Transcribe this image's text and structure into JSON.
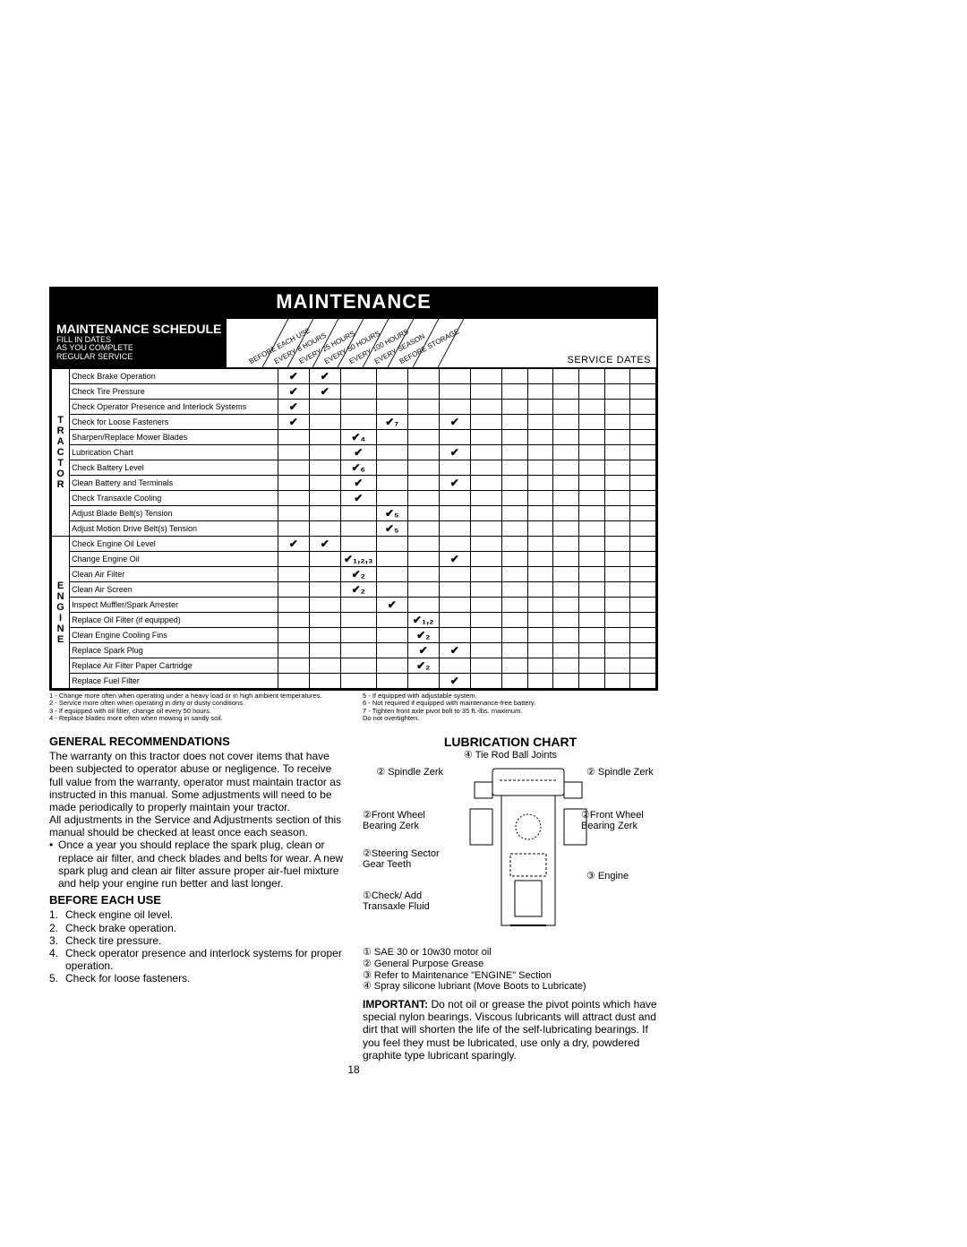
{
  "maint_header": "MAINTENANCE",
  "sched_title": "MAINTENANCE SCHEDULE",
  "sched_sub1": "FILL IN DATES",
  "sched_sub2": "AS YOU COMPLETE",
  "sched_sub3": "REGULAR SERVICE",
  "service_dates": "SERVICE DATES",
  "diag_cols": [
    "BEFORE EACH USE",
    "EVERY 8 HOURS",
    "EVERY 25 HOURS",
    "EVERY 50 HOURS",
    "EVERY 100 HOURS",
    "EVERY SEASON",
    "BEFORE STORAGE"
  ],
  "side_tractor": "TRACTOR",
  "side_engine": "ENGINE",
  "tractor_tasks": [
    {
      "t": "Check Brake Operation",
      "c": [
        "✔",
        "✔",
        "",
        "",
        "",
        "",
        ""
      ]
    },
    {
      "t": "Check Tire Pressure",
      "c": [
        "✔",
        "✔",
        "",
        "",
        "",
        "",
        ""
      ]
    },
    {
      "t": "Check Operator Presence and Interlock Systems",
      "c": [
        "✔",
        "",
        "",
        "",
        "",
        "",
        ""
      ]
    },
    {
      "t": "Check for Loose Fasteners",
      "c": [
        "✔",
        "",
        "",
        "✔₇",
        "",
        "✔",
        ""
      ]
    },
    {
      "t": "Sharpen/Replace Mower Blades",
      "c": [
        "",
        "",
        "✔₄",
        "",
        "",
        "",
        ""
      ]
    },
    {
      "t": "Lubrication Chart",
      "c": [
        "",
        "",
        "✔",
        "",
        "",
        "✔",
        ""
      ]
    },
    {
      "t": "Check Battery Level",
      "c": [
        "",
        "",
        "✔₆",
        "",
        "",
        "",
        ""
      ]
    },
    {
      "t": "Clean Battery and Terminals",
      "c": [
        "",
        "",
        "✔",
        "",
        "",
        "✔",
        ""
      ]
    },
    {
      "t": "Check Transaxle Cooling",
      "c": [
        "",
        "",
        "✔",
        "",
        "",
        "",
        ""
      ]
    },
    {
      "t": "Adjust Blade Belt(s) Tension",
      "c": [
        "",
        "",
        "",
        "✔₅",
        "",
        "",
        ""
      ]
    },
    {
      "t": "Adjust Motion Drive Belt(s) Tension",
      "c": [
        "",
        "",
        "",
        "✔₅",
        "",
        "",
        ""
      ]
    }
  ],
  "engine_tasks": [
    {
      "t": "Check Engine Oil Level",
      "c": [
        "✔",
        "✔",
        "",
        "",
        "",
        "",
        ""
      ]
    },
    {
      "t": "Change Engine Oil",
      "c": [
        "",
        "",
        "✔₁,₂,₃",
        "",
        "",
        "✔",
        ""
      ]
    },
    {
      "t": "Clean Air Filter",
      "c": [
        "",
        "",
        "✔₂",
        "",
        "",
        "",
        ""
      ]
    },
    {
      "t": "Clean Air Screen",
      "c": [
        "",
        "",
        "✔₂",
        "",
        "",
        "",
        ""
      ]
    },
    {
      "t": "Inspect Muffler/Spark Arrester",
      "c": [
        "",
        "",
        "",
        "✔",
        "",
        "",
        ""
      ]
    },
    {
      "t": "Replace Oil Filter (if equipped)",
      "c": [
        "",
        "",
        "",
        "",
        "✔₁,₂",
        "",
        ""
      ]
    },
    {
      "t": "Clean Engine Cooling Fins",
      "c": [
        "",
        "",
        "",
        "",
        "✔₂",
        "",
        ""
      ]
    },
    {
      "t": "Replace Spark Plug",
      "c": [
        "",
        "",
        "",
        "",
        "✔",
        "✔",
        ""
      ]
    },
    {
      "t": "Replace Air Filter Paper Cartridge",
      "c": [
        "",
        "",
        "",
        "",
        "✔₂",
        "",
        ""
      ]
    },
    {
      "t": "Replace Fuel Filter",
      "c": [
        "",
        "",
        "",
        "",
        "",
        "✔",
        ""
      ]
    }
  ],
  "footnotes_left": [
    "1 - Change more often when operating under a heavy load or in high ambient temperatures.",
    "2 - Service more often when operating in dirty or dusty conditions.",
    "3 - If equipped with oil filter, change oil every 50 hours.",
    "4 - Replace blades more often when mowing in sandy soil."
  ],
  "footnotes_right": [
    "5 - If equipped with adjustable system.",
    "6 - Not required if equipped with maintenance-free battery.",
    "7 - Tighten front axle pivot bolt to 35 ft.-lbs. maximum.",
    "     Do not overtighten."
  ],
  "gen_rec_head": "GENERAL RECOMMENDATIONS",
  "gen_rec_body": "The warranty on this tractor does not cover items that have been subjected to operator abuse or negligence. To receive full value from the warranty, operator must maintain tractor as instructed in this manual. Some adjustments will need to be made periodically to properly maintain your tractor.",
  "gen_rec_body2": "All adjustments in the Service and Adjustments section of this manual should be checked at least once each season.",
  "bullet1": "Once a year you should replace the spark plug, clean or replace air filter, and check blades and belts for wear. A new spark plug and clean air filter assure proper air-fuel mixture and help your engine run better and last longer.",
  "before_head": "BEFORE EACH USE",
  "before_items": [
    "Check engine oil level.",
    "Check brake operation.",
    "Check tire pressure.",
    "Check operator presence and interlock systems for proper operation.",
    "Check for loose fasteners."
  ],
  "lub_title": "LUBRICATION CHART",
  "lub_sub": "④ Tie Rod Ball Joints",
  "lub_labels": {
    "spindleL": "② Spindle Zerk",
    "spindleR": "② Spindle Zerk",
    "frontWheelL": "②Front Wheel Bearing Zerk",
    "frontWheelR": "②Front Wheel Bearing Zerk",
    "steering": "②Steering Sector Gear Teeth",
    "transaxle": "①Check/ Add Transaxle Fluid",
    "engine": "③ Engine"
  },
  "lub_notes": [
    "① SAE 30 or 10w30 motor oil",
    "② General Purpose Grease",
    "③ Refer to Maintenance  \"ENGINE\" Section",
    "④ Spray silicone lubriant (Move Boots to Lubricate)"
  ],
  "important_label": "IMPORTANT:",
  "important_body": "  Do not oil or grease the pivot points which have special nylon bearings. Viscous lubricants will attract dust and dirt that will shorten the life of the self-lubricating bearings. If you feel they must be lubricated, use only a dry, powdered graphite type lubricant sparingly.",
  "page_number": "18"
}
